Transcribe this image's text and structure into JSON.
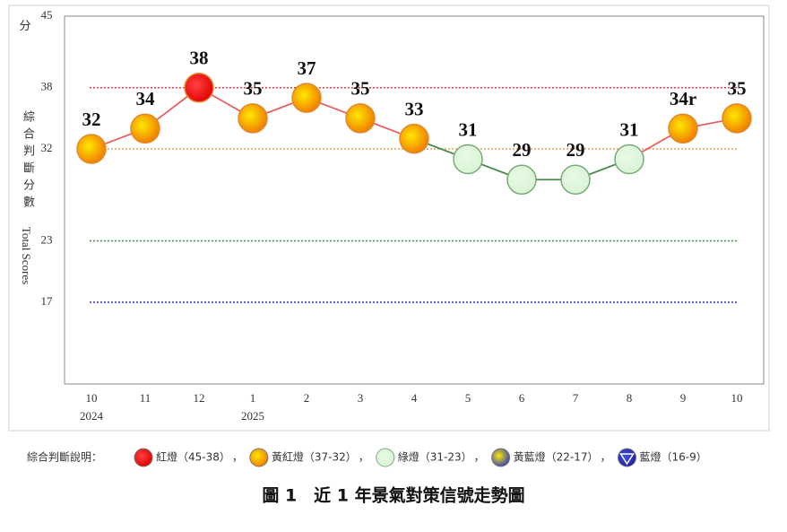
{
  "chart_data": {
    "type": "line",
    "y_unit": "分",
    "ylabel": "綜合判斷分數",
    "ylabel_en": "Total Scores",
    "categories": [
      "10",
      "11",
      "12",
      "1",
      "2",
      "3",
      "4",
      "5",
      "6",
      "7",
      "8",
      "9",
      "10"
    ],
    "years": [
      "2024",
      null,
      null,
      "2025",
      null,
      null,
      null,
      null,
      null,
      null,
      null,
      null,
      null
    ],
    "values": [
      32,
      34,
      38,
      35,
      37,
      35,
      33,
      31,
      29,
      29,
      31,
      34,
      35
    ],
    "value_labels": [
      "32",
      "34",
      "38",
      "35",
      "37",
      "35",
      "33",
      "31",
      "29",
      "29",
      "31",
      "34r",
      "35"
    ],
    "marker_colors": [
      "#f07800",
      "#f07800",
      "#e00000",
      "#f07800",
      "#f07800",
      "#f07800",
      "#f07800",
      "#d8f4d4",
      "#d8f4d4",
      "#d8f4d4",
      "#d8f4d4",
      "#f07800",
      "#f07800"
    ],
    "ylim": [
      9,
      45
    ],
    "yticks": [
      17,
      23,
      32,
      38,
      45
    ],
    "reference_lines": [
      {
        "value": 38,
        "color": "#e04040"
      },
      {
        "value": 32,
        "color": "#e0a050"
      },
      {
        "value": 23,
        "color": "#3a9a3a"
      },
      {
        "value": 17,
        "color": "#3030c0"
      }
    ],
    "legend_title": "綜合判斷說明：",
    "legend_separator": "，",
    "legend": [
      {
        "label": "紅燈（45-38）",
        "colors": [
          "#ff4040",
          "#e00000"
        ],
        "line_color": "#e86060"
      },
      {
        "label": "黃紅燈（37-32）",
        "colors": [
          "#ffe800",
          "#f07800"
        ],
        "line_color": "#e86060"
      },
      {
        "label": "綠燈（31-23）",
        "colors": [
          "#e8fae6",
          "#d8f4d4"
        ],
        "line_color": "#4a8a4a"
      },
      {
        "label": "黃藍燈（22-17）",
        "colors": [
          "#ffe800",
          "#3040c0"
        ],
        "line_color": "#4060c0"
      },
      {
        "label": "藍燈（16-9）",
        "colors": [
          "#4050e0",
          "#2020a0"
        ],
        "line_color": "#2020a0"
      }
    ],
    "caption": "圖 1　近 1 年景氣對策信號走勢圖"
  }
}
